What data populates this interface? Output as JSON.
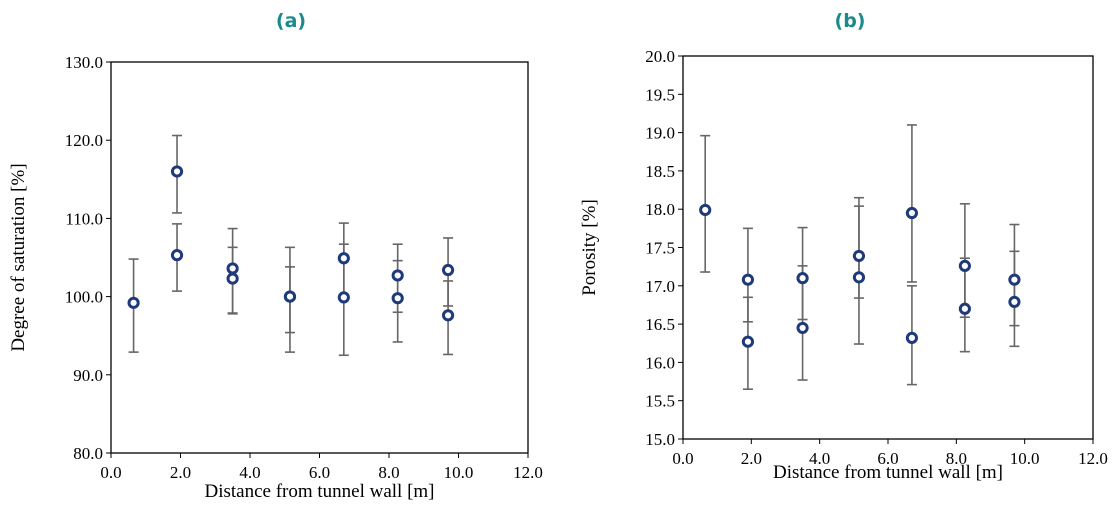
{
  "chart_data": [
    {
      "type": "scatter",
      "panel_label": "(a)",
      "xlabel": "Distance from tunnel wall [m]",
      "ylabel": "Degree of saturation [%]",
      "xlim": [
        0.0,
        12.0
      ],
      "ylim": [
        80.0,
        130.0
      ],
      "xticks": [
        "0.0",
        "2.0",
        "4.0",
        "6.0",
        "8.0",
        "10.0",
        "12.0"
      ],
      "yticks": [
        "80.0",
        "90.0",
        "100.0",
        "110.0",
        "120.0",
        "130.0"
      ],
      "grid": false,
      "error_bars": true,
      "marker_color": "#1f3a7a",
      "errorbar_color": "#666666",
      "points": [
        {
          "x": 0.65,
          "y": 99.2,
          "err_low": 92.9,
          "err_high": 104.8
        },
        {
          "x": 1.9,
          "y": 116.0,
          "err_low": 110.7,
          "err_high": 120.6
        },
        {
          "x": 1.9,
          "y": 105.3,
          "err_low": 100.7,
          "err_high": 109.3
        },
        {
          "x": 3.5,
          "y": 103.6,
          "err_low": 97.9,
          "err_high": 108.7
        },
        {
          "x": 3.5,
          "y": 102.3,
          "err_low": 97.8,
          "err_high": 106.3
        },
        {
          "x": 5.15,
          "y": 100.0,
          "err_low": 92.9,
          "err_high": 106.3
        },
        {
          "x": 5.15,
          "y": 100.0,
          "err_low": 95.4,
          "err_high": 103.8
        },
        {
          "x": 6.7,
          "y": 104.9,
          "err_low": 100.0,
          "err_high": 109.4
        },
        {
          "x": 6.7,
          "y": 99.9,
          "err_low": 92.5,
          "err_high": 106.7
        },
        {
          "x": 8.25,
          "y": 102.7,
          "err_low": 98.0,
          "err_high": 106.7
        },
        {
          "x": 8.25,
          "y": 99.8,
          "err_low": 94.2,
          "err_high": 104.6
        },
        {
          "x": 9.7,
          "y": 103.4,
          "err_low": 98.8,
          "err_high": 107.5
        },
        {
          "x": 9.7,
          "y": 97.6,
          "err_low": 92.6,
          "err_high": 102.0
        }
      ]
    },
    {
      "type": "scatter",
      "panel_label": "(b)",
      "xlabel": "Distance from tunnel wall [m]",
      "ylabel": "Porosity [%]",
      "xlim": [
        0.0,
        12.0
      ],
      "ylim": [
        15.0,
        20.0
      ],
      "xticks": [
        "0.0",
        "2.0",
        "4.0",
        "6.0",
        "8.0",
        "10.0",
        "12.0"
      ],
      "yticks": [
        "15.0",
        "15.5",
        "16.0",
        "16.5",
        "17.0",
        "17.5",
        "18.0",
        "18.5",
        "19.0",
        "19.5",
        "20.0"
      ],
      "grid": false,
      "error_bars": true,
      "marker_color": "#1f3a7a",
      "errorbar_color": "#666666",
      "points": [
        {
          "x": 0.65,
          "y": 17.99,
          "err_low": 17.18,
          "err_high": 18.96
        },
        {
          "x": 1.9,
          "y": 17.08,
          "err_low": 16.53,
          "err_high": 17.75
        },
        {
          "x": 1.9,
          "y": 16.27,
          "err_low": 15.65,
          "err_high": 16.85
        },
        {
          "x": 3.5,
          "y": 17.1,
          "err_low": 16.56,
          "err_high": 17.76
        },
        {
          "x": 3.5,
          "y": 16.45,
          "err_low": 15.77,
          "err_high": 17.26
        },
        {
          "x": 5.15,
          "y": 17.39,
          "err_low": 16.84,
          "err_high": 18.15
        },
        {
          "x": 5.15,
          "y": 17.11,
          "err_low": 16.24,
          "err_high": 18.04
        },
        {
          "x": 6.7,
          "y": 17.95,
          "err_low": 17.05,
          "err_high": 19.1
        },
        {
          "x": 6.7,
          "y": 16.32,
          "err_low": 15.71,
          "err_high": 17.0
        },
        {
          "x": 8.25,
          "y": 17.26,
          "err_low": 16.59,
          "err_high": 18.07
        },
        {
          "x": 8.25,
          "y": 16.7,
          "err_low": 16.14,
          "err_high": 17.36
        },
        {
          "x": 9.7,
          "y": 17.08,
          "err_low": 16.48,
          "err_high": 17.8
        },
        {
          "x": 9.7,
          "y": 16.79,
          "err_low": 16.21,
          "err_high": 17.45
        }
      ]
    }
  ]
}
